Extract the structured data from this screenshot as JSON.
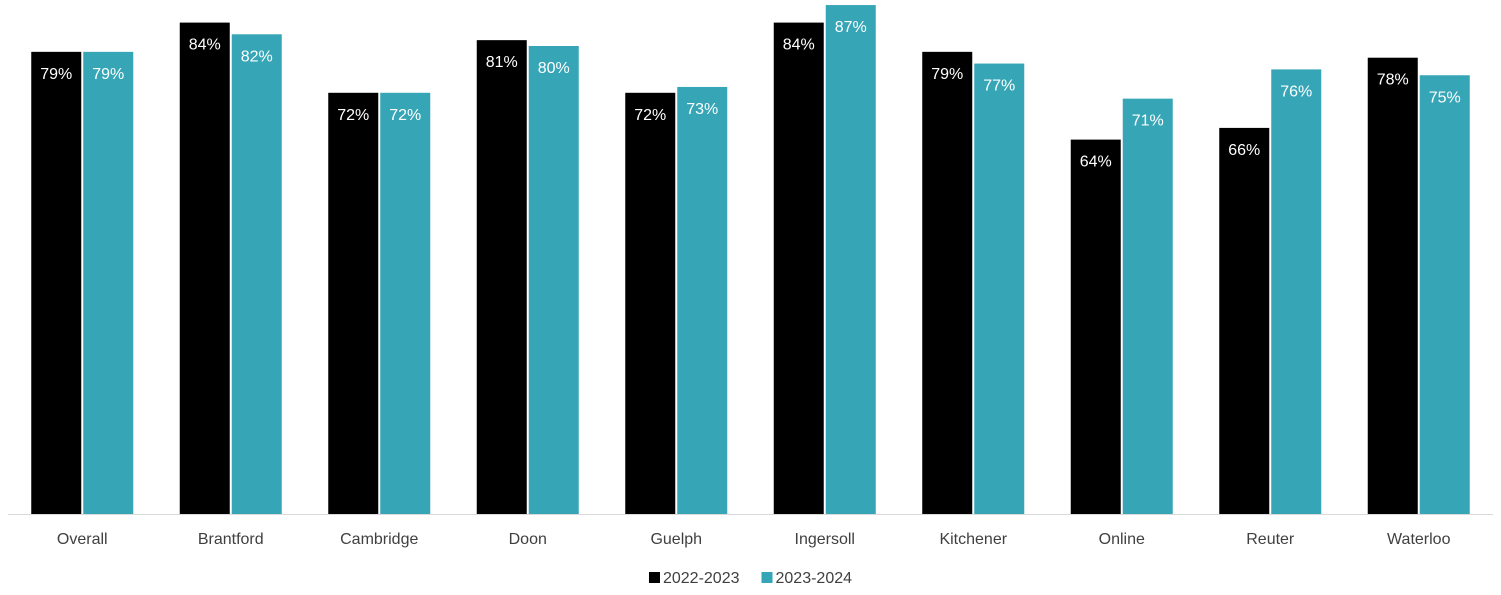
{
  "chart_data": {
    "type": "bar",
    "title": "",
    "xlabel": "",
    "ylabel": "",
    "ylim": [
      0,
      100
    ],
    "grid": false,
    "legend_position": "bottom-center",
    "categories": [
      "Overall",
      "Brantford",
      "Cambridge",
      "Doon",
      "Guelph",
      "Ingersoll",
      "Kitchener",
      "Online",
      "Reuter",
      "Waterloo"
    ],
    "series": [
      {
        "name": "2022-2023",
        "color": "#000000",
        "values": [
          79,
          84,
          72,
          81,
          72,
          84,
          79,
          64,
          66,
          78
        ],
        "labels": [
          "79%",
          "84%",
          "72%",
          "81%",
          "72%",
          "84%",
          "79%",
          "64%",
          "66%",
          "78%"
        ]
      },
      {
        "name": "2023-2024",
        "color": "#36A6B7",
        "values": [
          79,
          82,
          72,
          80,
          73,
          87,
          77,
          71,
          76,
          75
        ],
        "labels": [
          "79%",
          "82%",
          "72%",
          "80%",
          "73%",
          "87%",
          "77%",
          "71%",
          "76%",
          "75%"
        ]
      }
    ]
  }
}
